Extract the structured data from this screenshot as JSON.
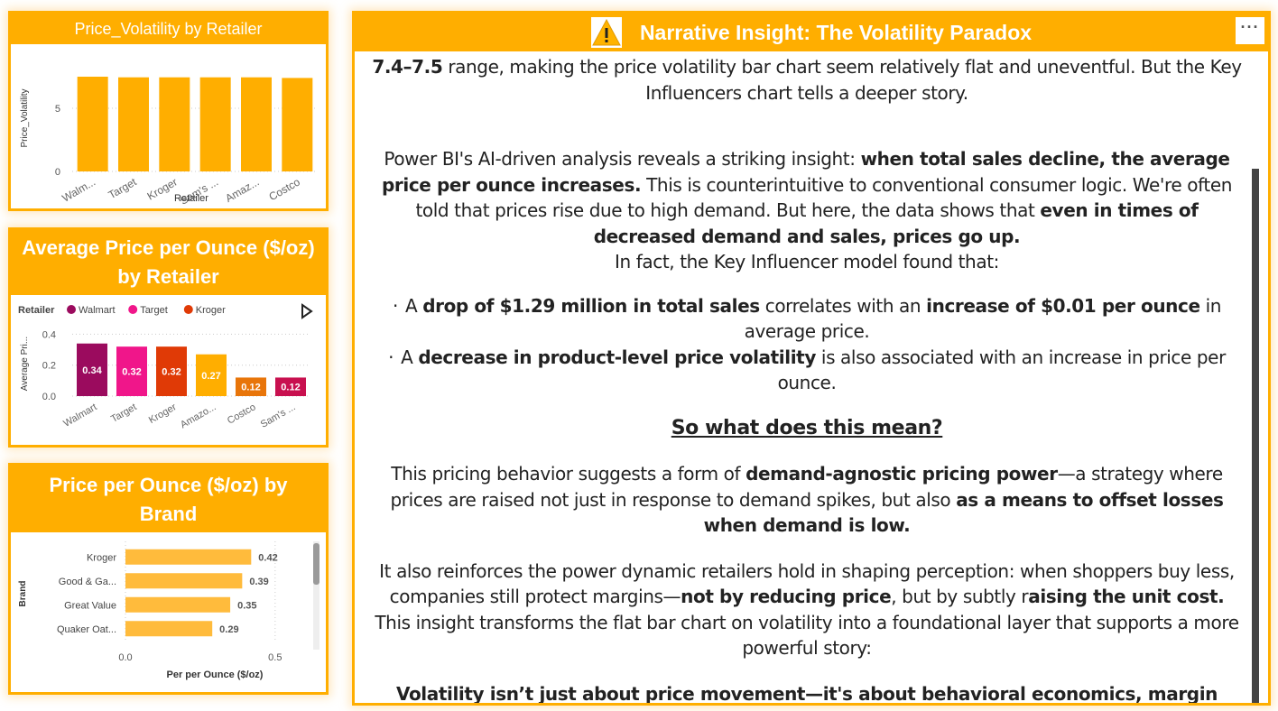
{
  "colors": {
    "accent": "#FFAE00",
    "walmart": "#9B0B5E",
    "target": "#F0168A",
    "kroger": "#E03A06",
    "amazon": "#FFAE00",
    "costco": "#E8750A",
    "sams": "#C8104F",
    "brand_bar": "#FFBB3C"
  },
  "cards": {
    "volatility": {
      "title": "Price_Volatility by Retailer",
      "ylabel": "Price_Volatility",
      "xlabel": "Retailer",
      "yticks": [
        "0",
        "5"
      ],
      "ylim": [
        0,
        8.5
      ]
    },
    "avg_price": {
      "title_line1": "Average Price per Ounce ($/oz)",
      "title_line2": "by Retailer",
      "legend_title": "Retailer",
      "legend": [
        "Walmart",
        "Target",
        "Kroger"
      ],
      "ylabel": "Average Pri...",
      "yticks": [
        "0.0",
        "0.2",
        "0.4"
      ],
      "ylim": [
        0,
        0.42
      ],
      "play_icon": "play-icon"
    },
    "brand": {
      "title_line1": "Price per Ounce ($/oz) by",
      "title_line2": "Brand",
      "ylabel": "Brand",
      "xlabel": "Per per Ounce ($/oz)",
      "xticks": [
        "0.0",
        "0.5"
      ],
      "xlim": [
        0,
        0.6
      ]
    }
  },
  "chart_data": [
    {
      "type": "bar",
      "title": "Price_Volatility by Retailer",
      "categories": [
        "Walm...",
        "Target",
        "Kroger",
        "Sam's ...",
        "Amaz...",
        "Costco"
      ],
      "values": [
        7.5,
        7.45,
        7.45,
        7.45,
        7.45,
        7.4
      ],
      "xlabel": "Retailer",
      "ylabel": "Price_Volatility",
      "ylim": [
        0,
        8.5
      ]
    },
    {
      "type": "bar",
      "title": "Average Price per Ounce ($/oz) by Retailer",
      "categories": [
        "Walmart",
        "Target",
        "Kroger",
        "Amazo...",
        "Costco",
        "Sam's ..."
      ],
      "values": [
        0.34,
        0.32,
        0.32,
        0.27,
        0.12,
        0.12
      ],
      "labels": [
        "0.34",
        "0.32",
        "0.32",
        "0.27",
        "0.12",
        "0.12"
      ],
      "ylabel": "Average Pri...",
      "ylim": [
        0,
        0.42
      ]
    },
    {
      "type": "bar",
      "title": "Price per Ounce ($/oz) by Brand",
      "categories": [
        "Kroger",
        "Good & Ga...",
        "Great Value",
        "Quaker Oat..."
      ],
      "values": [
        0.42,
        0.39,
        0.35,
        0.29
      ],
      "labels": [
        "0.42",
        "0.39",
        "0.35",
        "0.29"
      ],
      "xlabel": "Per per Ounce ($/oz)",
      "ylabel": "Brand",
      "xlim": [
        0,
        0.6
      ]
    }
  ],
  "narrative": {
    "title": "Narrative Insight: The Volatility Paradox",
    "more_label": "···",
    "p0_bold": "7.4–7.5",
    "p0_rest": " range, making the price volatility bar chart seem relatively flat and uneventful. But the Key Influencers chart tells a deeper story.",
    "p1_a": "Power BI's AI-driven analysis reveals a striking insight: ",
    "p1_b": "when total sales decline, the average price per ounce increases.",
    "p1_c": " This is counterintuitive to conventional consumer logic. We're often told that prices rise due to high demand. But here, the data shows that ",
    "p1_d": "even in times of decreased demand and sales, prices go up.",
    "p2": "In fact, the Key Influencer model found that:",
    "bullet1_a": "A ",
    "bullet1_b": "drop of $1.29 million in total sales",
    "bullet1_c": " correlates with an ",
    "bullet1_d": "increase of $0.01 per ounce",
    "bullet1_e": " in average price.",
    "bullet2_a": "A ",
    "bullet2_b": "decrease in product-level price volatility",
    "bullet2_c": " is also associated with an increase in price per ounce.",
    "heading": "So what does this mean?",
    "p3_a": "This pricing behavior suggests a form of ",
    "p3_b": "demand-agnostic pricing power",
    "p3_c": "—a strategy where prices are raised not just in response to demand spikes, but also ",
    "p3_d": "as a means to offset losses when demand is low.",
    "p4_a": "It also reinforces the power dynamic retailers hold in shaping perception: when shoppers buy less, companies still protect margins—",
    "p4_b": "not by reducing price",
    "p4_c": ", but by subtly r",
    "p4_d": "aising the unit cost.",
    "p5": "This insight transforms the flat bar chart on volatility into a foundational layer that supports a more powerful story:",
    "p6": "Volatility isn’t just about price movement—it's about behavioral economics, margin recovery, and psychological misdirection."
  }
}
